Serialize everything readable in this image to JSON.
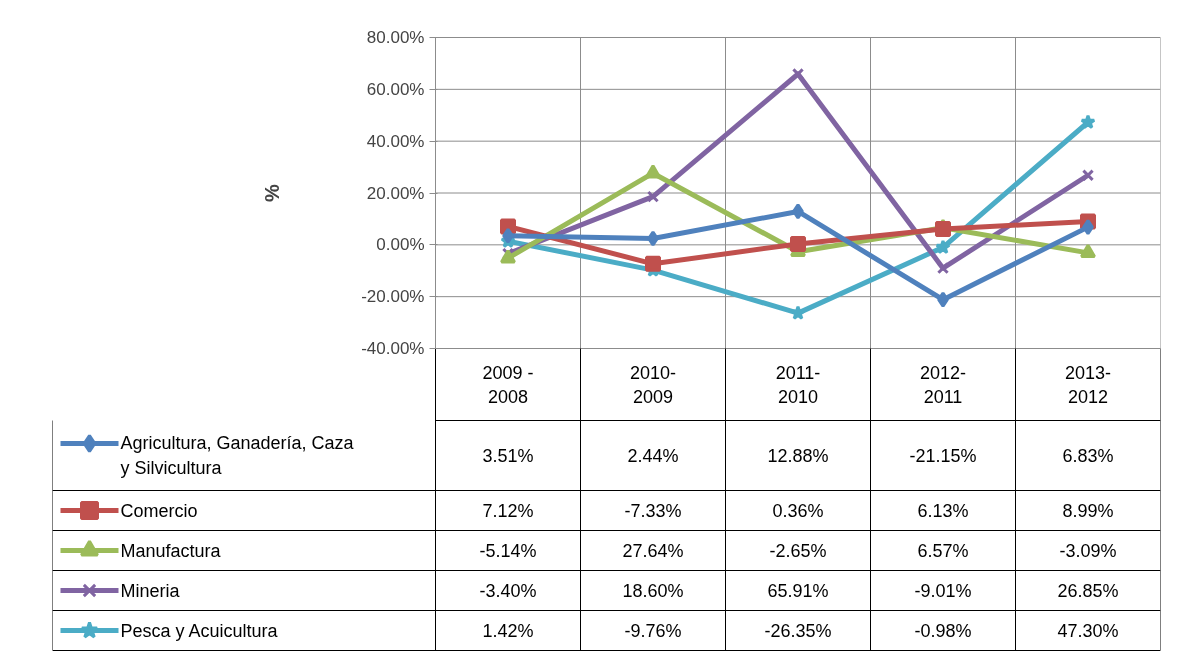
{
  "chart_data": {
    "type": "line",
    "ylabel": "%",
    "categories": [
      "2009 - 2008",
      "2010-2009",
      "2011-2010",
      "2012-2011",
      "2013-2012"
    ],
    "ylim": [
      -40,
      80
    ],
    "yticks": [
      {
        "value": -40,
        "label": "-40.00%"
      },
      {
        "value": -20,
        "label": "-20.00%"
      },
      {
        "value": 0,
        "label": "0.00%"
      },
      {
        "value": 20,
        "label": "20.00%"
      },
      {
        "value": 40,
        "label": "40.00%"
      },
      {
        "value": 60,
        "label": "60.00%"
      },
      {
        "value": 80,
        "label": "80.00%"
      }
    ],
    "grid": "y",
    "legend": "bottom",
    "series": [
      {
        "name": "Agricultura, Ganadería, Caza y Silvicultura",
        "color": "#4f81bd",
        "marker": "diamond",
        "values": [
          3.51,
          2.44,
          12.88,
          -21.15,
          6.83
        ],
        "value_labels": [
          "3.51%",
          "2.44%",
          "12.88%",
          "-21.15%",
          "6.83%"
        ]
      },
      {
        "name": "Comercio",
        "color": "#c0504d",
        "marker": "square",
        "values": [
          7.12,
          -7.33,
          0.36,
          6.13,
          8.99
        ],
        "value_labels": [
          "7.12%",
          "-7.33%",
          "0.36%",
          "6.13%",
          "8.99%"
        ]
      },
      {
        "name": "Manufactura",
        "color": "#9bbb59",
        "marker": "triangle",
        "values": [
          -5.14,
          27.64,
          -2.65,
          6.57,
          -3.09
        ],
        "value_labels": [
          "-5.14%",
          "27.64%",
          "-2.65%",
          "6.57%",
          "-3.09%"
        ]
      },
      {
        "name": "Mineria",
        "color": "#8064a2",
        "marker": "cross",
        "values": [
          -3.4,
          18.6,
          65.91,
          -9.01,
          26.85
        ],
        "value_labels": [
          "-3.40%",
          "18.60%",
          "65.91%",
          "-9.01%",
          "26.85%"
        ]
      },
      {
        "name": "Pesca y Acuicultura",
        "color": "#4bacc6",
        "marker": "star",
        "values": [
          1.42,
          -9.76,
          -26.35,
          -0.98,
          47.3
        ],
        "value_labels": [
          "1.42%",
          "-9.76%",
          "-26.35%",
          "-0.98%",
          "47.30%"
        ]
      }
    ]
  }
}
